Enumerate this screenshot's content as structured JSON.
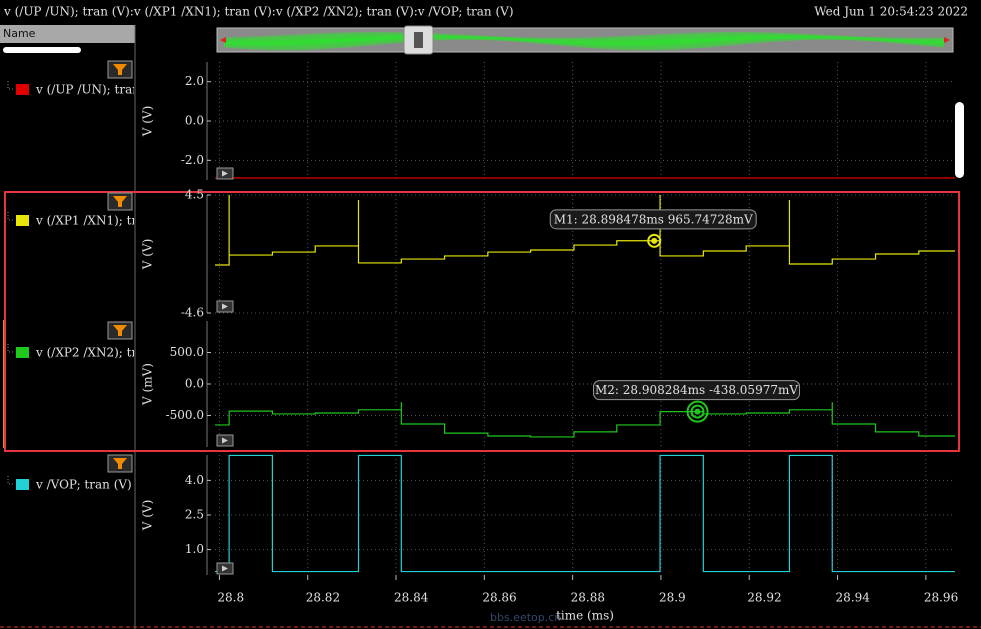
{
  "header": {
    "title": "v (/UP /UN); tran (V):v (/XP1 /XN1); tran (V):v (/XP2 /XN2); tran (V):v /VOP; tran (V)",
    "datetime": "Wed Jun 1 20:54:23 2022"
  },
  "sidebar": {
    "column": "Name"
  },
  "xaxis": {
    "label": "time (ms)",
    "xlim": [
      28.799,
      28.9666
    ],
    "xticks": [
      28.8,
      28.82,
      28.84,
      28.86,
      28.88,
      28.9,
      28.92,
      28.94,
      28.96
    ]
  },
  "strips": [
    {
      "type": "line",
      "name": "v (/UP /UN); tran",
      "color": "#e00000",
      "ylabel": "V (V)",
      "ylim": [
        -3,
        3
      ],
      "yticks": [
        {
          "value": 2,
          "label": "2.0"
        },
        {
          "value": 0,
          "label": "0.0"
        },
        {
          "value": -2,
          "label": "-2.0"
        }
      ],
      "x": [
        28.799,
        28.9666
      ],
      "values": [
        -2.9,
        -2.9
      ]
    },
    {
      "type": "line",
      "name": "v (/XP1 /XN1); tr",
      "color": "#e6e60a",
      "ylabel": "V (V)",
      "ylim": [
        -4.6,
        4.5
      ],
      "yticks": [
        4.5,
        -4.6
      ],
      "x": [
        28.799,
        28.8022,
        28.8022,
        28.8022,
        28.812,
        28.812,
        28.8217,
        28.8217,
        28.8315,
        28.8315,
        28.8315,
        28.8412,
        28.8412,
        28.851,
        28.851,
        28.8608,
        28.8608,
        28.8705,
        28.8705,
        28.8803,
        28.8803,
        28.89,
        28.89,
        28.8998,
        28.8998,
        28.8998,
        28.9096,
        28.9096,
        28.9193,
        28.9193,
        28.9291,
        28.9291,
        28.9291,
        28.9388,
        28.9388,
        28.9486,
        28.9486,
        28.9584,
        28.9584,
        28.9666
      ],
      "values": [
        -0.9,
        -0.9,
        4.5,
        -0.13,
        -0.13,
        0.1,
        0.1,
        0.57,
        0.57,
        4.11,
        -0.74,
        -0.74,
        -0.44,
        -0.44,
        -0.2,
        -0.2,
        0.1,
        0.1,
        0.26,
        0.26,
        0.64,
        0.64,
        0.97,
        0.97,
        4.5,
        -0.2,
        -0.2,
        0.18,
        0.18,
        0.57,
        0.57,
        4.11,
        -0.82,
        -0.82,
        -0.44,
        -0.44,
        -0.05,
        -0.05,
        0.18,
        0.18
      ],
      "marker": {
        "label": "M1: 28.898478ms 965.74728mV",
        "x": 28.898478,
        "value": 0.96574728
      }
    },
    {
      "type": "line",
      "name": "v (/XP2 /XN2); tr",
      "color": "#1ec81e",
      "ylabel": "V (mV)",
      "ylim": [
        -1000,
        1000
      ],
      "yticks": [
        {
          "value": 500,
          "label": "500.0"
        },
        {
          "value": 0,
          "label": "0.0"
        },
        {
          "value": -500,
          "label": "-500.0"
        }
      ],
      "x": [
        28.799,
        28.8022,
        28.8022,
        28.812,
        28.812,
        28.8217,
        28.8217,
        28.8315,
        28.8315,
        28.8412,
        28.8412,
        28.8412,
        28.851,
        28.851,
        28.8608,
        28.8608,
        28.8705,
        28.8705,
        28.8803,
        28.8803,
        28.89,
        28.89,
        28.8998,
        28.8998,
        28.9096,
        28.9096,
        28.9193,
        28.9193,
        28.9291,
        28.9291,
        28.9388,
        28.9388,
        28.9388,
        28.9486,
        28.9486,
        28.9584,
        28.9584,
        28.9666
      ],
      "values": [
        -650,
        -650,
        -430,
        -430,
        -475,
        -475,
        -460,
        -460,
        -410,
        -410,
        -290,
        -635,
        -635,
        -780,
        -780,
        -825,
        -825,
        -840,
        -840,
        -760,
        -760,
        -650,
        -650,
        -438,
        -438,
        -475,
        -475,
        -460,
        -460,
        -410,
        -410,
        -290,
        -635,
        -635,
        -760,
        -760,
        -825,
        -825
      ],
      "marker": {
        "label": "M2: 28.908284ms -438.05977mV",
        "x": 28.908284,
        "value": -438.05977
      }
    },
    {
      "type": "line",
      "name": "v /VOP; tran (V)",
      "color": "#22d0d8",
      "ylabel": "V (V)",
      "ylim": [
        -0.1,
        5.1
      ],
      "yticks": [
        {
          "value": 4,
          "label": "4.0"
        },
        2.5,
        {
          "value": 1,
          "label": "1.0"
        }
      ],
      "x": [
        28.799,
        28.8022,
        28.8022,
        28.812,
        28.812,
        28.8315,
        28.8315,
        28.8412,
        28.8412,
        28.8998,
        28.8998,
        28.9096,
        28.9096,
        28.9291,
        28.9291,
        28.9388,
        28.9388,
        28.9666
      ],
      "values": [
        0.05,
        0.05,
        5.08,
        5.08,
        0.05,
        0.05,
        5.08,
        5.08,
        0.05,
        0.05,
        5.08,
        5.08,
        0.05,
        0.05,
        5.08,
        5.08,
        0.05,
        0.05
      ]
    }
  ],
  "watermark": "bbs.eetop.cn"
}
